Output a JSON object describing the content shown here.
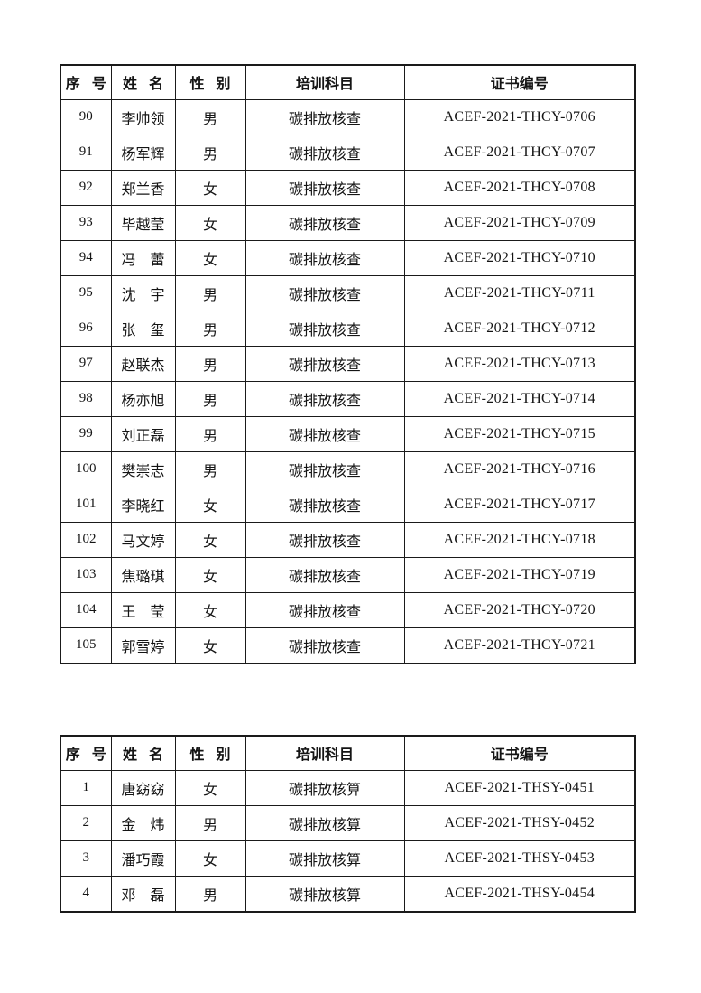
{
  "page": {
    "background_color": "#ffffff",
    "border_color": "#1a1a1a",
    "text_color": "#141414"
  },
  "tables": [
    {
      "title": "certificate-roster-thcy",
      "headers": [
        "序 号",
        "姓 名",
        "性 别",
        "培训科目",
        "证书编号"
      ],
      "rows": [
        [
          "90",
          "李帅领",
          "男",
          "碳排放核查",
          "ACEF-2021-THCY-0706"
        ],
        [
          "91",
          "杨军辉",
          "男",
          "碳排放核查",
          "ACEF-2021-THCY-0707"
        ],
        [
          "92",
          "郑兰香",
          "女",
          "碳排放核查",
          "ACEF-2021-THCY-0708"
        ],
        [
          "93",
          "毕越莹",
          "女",
          "碳排放核查",
          "ACEF-2021-THCY-0709"
        ],
        [
          "94",
          "冯　蕾",
          "女",
          "碳排放核查",
          "ACEF-2021-THCY-0710"
        ],
        [
          "95",
          "沈　宇",
          "男",
          "碳排放核查",
          "ACEF-2021-THCY-0711"
        ],
        [
          "96",
          "张　玺",
          "男",
          "碳排放核查",
          "ACEF-2021-THCY-0712"
        ],
        [
          "97",
          "赵联杰",
          "男",
          "碳排放核查",
          "ACEF-2021-THCY-0713"
        ],
        [
          "98",
          "杨亦旭",
          "男",
          "碳排放核查",
          "ACEF-2021-THCY-0714"
        ],
        [
          "99",
          "刘正磊",
          "男",
          "碳排放核查",
          "ACEF-2021-THCY-0715"
        ],
        [
          "100",
          "樊崇志",
          "男",
          "碳排放核查",
          "ACEF-2021-THCY-0716"
        ],
        [
          "101",
          "李晓红",
          "女",
          "碳排放核查",
          "ACEF-2021-THCY-0717"
        ],
        [
          "102",
          "马文婷",
          "女",
          "碳排放核查",
          "ACEF-2021-THCY-0718"
        ],
        [
          "103",
          "焦璐琪",
          "女",
          "碳排放核查",
          "ACEF-2021-THCY-0719"
        ],
        [
          "104",
          "王　莹",
          "女",
          "碳排放核查",
          "ACEF-2021-THCY-0720"
        ],
        [
          "105",
          "郭雪婷",
          "女",
          "碳排放核查",
          "ACEF-2021-THCY-0721"
        ]
      ]
    },
    {
      "title": "certificate-roster-thsy",
      "headers": [
        "序 号",
        "姓 名",
        "性 别",
        "培训科目",
        "证书编号"
      ],
      "rows": [
        [
          "1",
          "唐窈窈",
          "女",
          "碳排放核算",
          "ACEF-2021-THSY-0451"
        ],
        [
          "2",
          "金　炜",
          "男",
          "碳排放核算",
          "ACEF-2021-THSY-0452"
        ],
        [
          "3",
          "潘巧霞",
          "女",
          "碳排放核算",
          "ACEF-2021-THSY-0453"
        ],
        [
          "4",
          "邓　磊",
          "男",
          "碳排放核算",
          "ACEF-2021-THSY-0454"
        ]
      ]
    }
  ],
  "column_semantics": [
    "serial-number",
    "name",
    "gender",
    "training-subject",
    "certificate-number"
  ]
}
